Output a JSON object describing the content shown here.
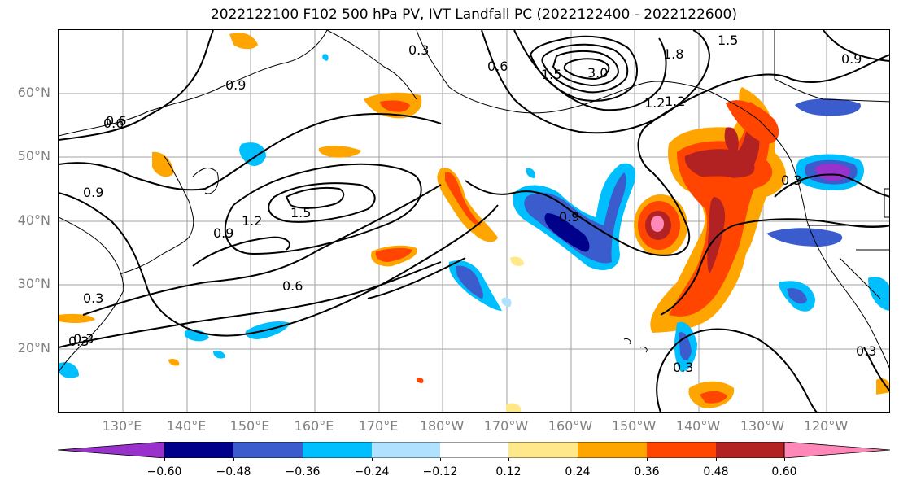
{
  "title": "2022122100 F102 500 hPa PV, IVT Landfall PC (2022122400 - 2022122600)",
  "lat_labels": [
    "60°N",
    "50°N",
    "40°N",
    "30°N",
    "20°N"
  ],
  "lon_labels": [
    "130°E",
    "140°E",
    "150°E",
    "160°E",
    "170°E",
    "180°W",
    "170°W",
    "160°W",
    "150°W",
    "140°W",
    "130°W",
    "120°W"
  ],
  "contour_labels": [
    "0.3",
    "0.6",
    "0.9",
    "1.2",
    "1.5",
    "1.8",
    "3.0",
    "0.6",
    "0.9",
    "1.2",
    "1.5",
    "0.9",
    "0.6",
    "0.3",
    "0.3",
    "0.3",
    "0.3",
    "0.3",
    "0.9",
    "1.2",
    "1.5",
    "0.6",
    "0.9",
    "0.3"
  ],
  "colorbar": {
    "ticks": [
      "−0.60",
      "−0.48",
      "−0.36",
      "−0.24",
      "−0.12",
      "0.12",
      "0.24",
      "0.36",
      "0.48",
      "0.60"
    ],
    "colors": [
      "#9932cc",
      "#00008b",
      "#3a5ccc",
      "#00bfff",
      "#b0e2ff",
      "#ffffff",
      "#ffe88a",
      "#ffa500",
      "#ff4500",
      "#b22222",
      "#ff88b8"
    ]
  }
}
